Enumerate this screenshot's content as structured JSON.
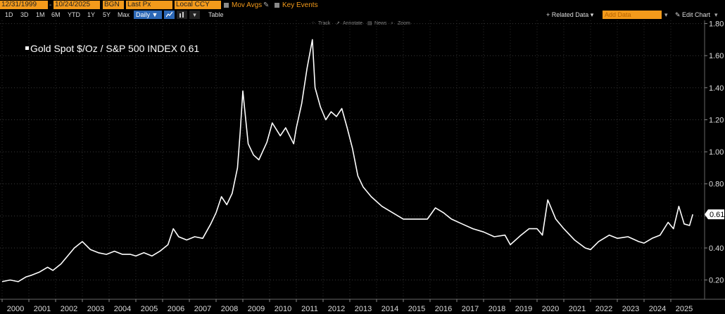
{
  "toolbar": {
    "start_date": "12/31/1999",
    "end_date": "10/24/2025",
    "source": "BGN",
    "field": "Last Px",
    "currency": "Local CCY",
    "mov_avgs": "Mov Avgs",
    "key_events": "Key Events",
    "periods": [
      "1D",
      "3D",
      "1M",
      "6M",
      "YTD",
      "1Y",
      "5Y",
      "Max"
    ],
    "frequency": "Daily ▼",
    "table": "Table",
    "related_data": "+ Related Data ▾",
    "add_data_placeholder": "Add Data",
    "edit_chart": "✎ Edit Chart",
    "track": "Track",
    "annotate": "Annotate",
    "news": "News",
    "zoom": "Zoom"
  },
  "colors": {
    "accent": "#f39a1b",
    "line": "#ffffff",
    "background": "#000000",
    "blue": "#2c68b6"
  },
  "chart_data": {
    "type": "line",
    "legend": "Gold Spot $/Oz / S&P 500 INDEX 0.61",
    "last_value_label": "0.61",
    "ylim": [
      0.08,
      1.82
    ],
    "yticks": [
      0.2,
      0.4,
      0.6,
      0.8,
      1.0,
      1.2,
      1.4,
      1.6,
      1.8
    ],
    "ytick_labels": [
      "0.20",
      "0.40",
      "0.60",
      "0.80",
      "1.00",
      "1.20",
      "1.40",
      "1.60",
      "1.80"
    ],
    "xlim": [
      2000.0,
      2025.82
    ],
    "xtick_labels": [
      "2000",
      "2001",
      "2002",
      "2003",
      "2004",
      "2005",
      "2006",
      "2007",
      "2008",
      "2009",
      "2010",
      "2011",
      "2012",
      "2013",
      "2014",
      "2015",
      "2016",
      "2017",
      "2018",
      "2019",
      "2020",
      "2021",
      "2022",
      "2023",
      "2024",
      "2025"
    ],
    "series": [
      {
        "name": "Gold Spot $/Oz / S&P 500 INDEX",
        "x": [
          2000.0,
          2000.3,
          2000.6,
          2000.9,
          2001.1,
          2001.4,
          2001.7,
          2001.9,
          2002.2,
          2002.5,
          2002.7,
          2003.0,
          2003.3,
          2003.6,
          2003.9,
          2004.2,
          2004.5,
          2004.8,
          2005.0,
          2005.3,
          2005.6,
          2005.9,
          2006.2,
          2006.4,
          2006.6,
          2006.9,
          2007.2,
          2007.5,
          2007.8,
          2008.0,
          2008.2,
          2008.4,
          2008.6,
          2008.8,
          2008.9,
          2009.0,
          2009.2,
          2009.4,
          2009.6,
          2009.9,
          2010.1,
          2010.4,
          2010.6,
          2010.9,
          2011.0,
          2011.2,
          2011.4,
          2011.6,
          2011.7,
          2011.9,
          2012.1,
          2012.3,
          2012.5,
          2012.7,
          2012.9,
          2013.1,
          2013.3,
          2013.5,
          2013.8,
          2014.2,
          2014.6,
          2015.0,
          2015.5,
          2015.9,
          2016.2,
          2016.5,
          2016.8,
          2017.2,
          2017.6,
          2018.0,
          2018.4,
          2018.8,
          2019.0,
          2019.4,
          2019.7,
          2020.0,
          2020.2,
          2020.4,
          2020.7,
          2021.0,
          2021.4,
          2021.8,
          2022.0,
          2022.3,
          2022.7,
          2023.0,
          2023.4,
          2023.8,
          2024.0,
          2024.3,
          2024.6,
          2024.9,
          2025.1,
          2025.3,
          2025.5,
          2025.7,
          2025.82
        ],
        "values": [
          0.19,
          0.2,
          0.19,
          0.22,
          0.23,
          0.25,
          0.28,
          0.26,
          0.3,
          0.36,
          0.4,
          0.44,
          0.39,
          0.37,
          0.36,
          0.38,
          0.36,
          0.36,
          0.35,
          0.37,
          0.35,
          0.38,
          0.42,
          0.52,
          0.47,
          0.45,
          0.47,
          0.46,
          0.55,
          0.62,
          0.72,
          0.67,
          0.74,
          0.9,
          1.12,
          1.38,
          1.05,
          0.98,
          0.95,
          1.06,
          1.18,
          1.1,
          1.15,
          1.05,
          1.15,
          1.3,
          1.52,
          1.7,
          1.4,
          1.28,
          1.2,
          1.25,
          1.22,
          1.27,
          1.15,
          1.02,
          0.85,
          0.78,
          0.72,
          0.66,
          0.62,
          0.58,
          0.58,
          0.58,
          0.65,
          0.62,
          0.58,
          0.55,
          0.52,
          0.5,
          0.47,
          0.48,
          0.42,
          0.48,
          0.52,
          0.52,
          0.48,
          0.7,
          0.58,
          0.52,
          0.45,
          0.4,
          0.39,
          0.44,
          0.48,
          0.46,
          0.47,
          0.44,
          0.43,
          0.46,
          0.48,
          0.56,
          0.52,
          0.66,
          0.55,
          0.54,
          0.61
        ]
      }
    ]
  }
}
